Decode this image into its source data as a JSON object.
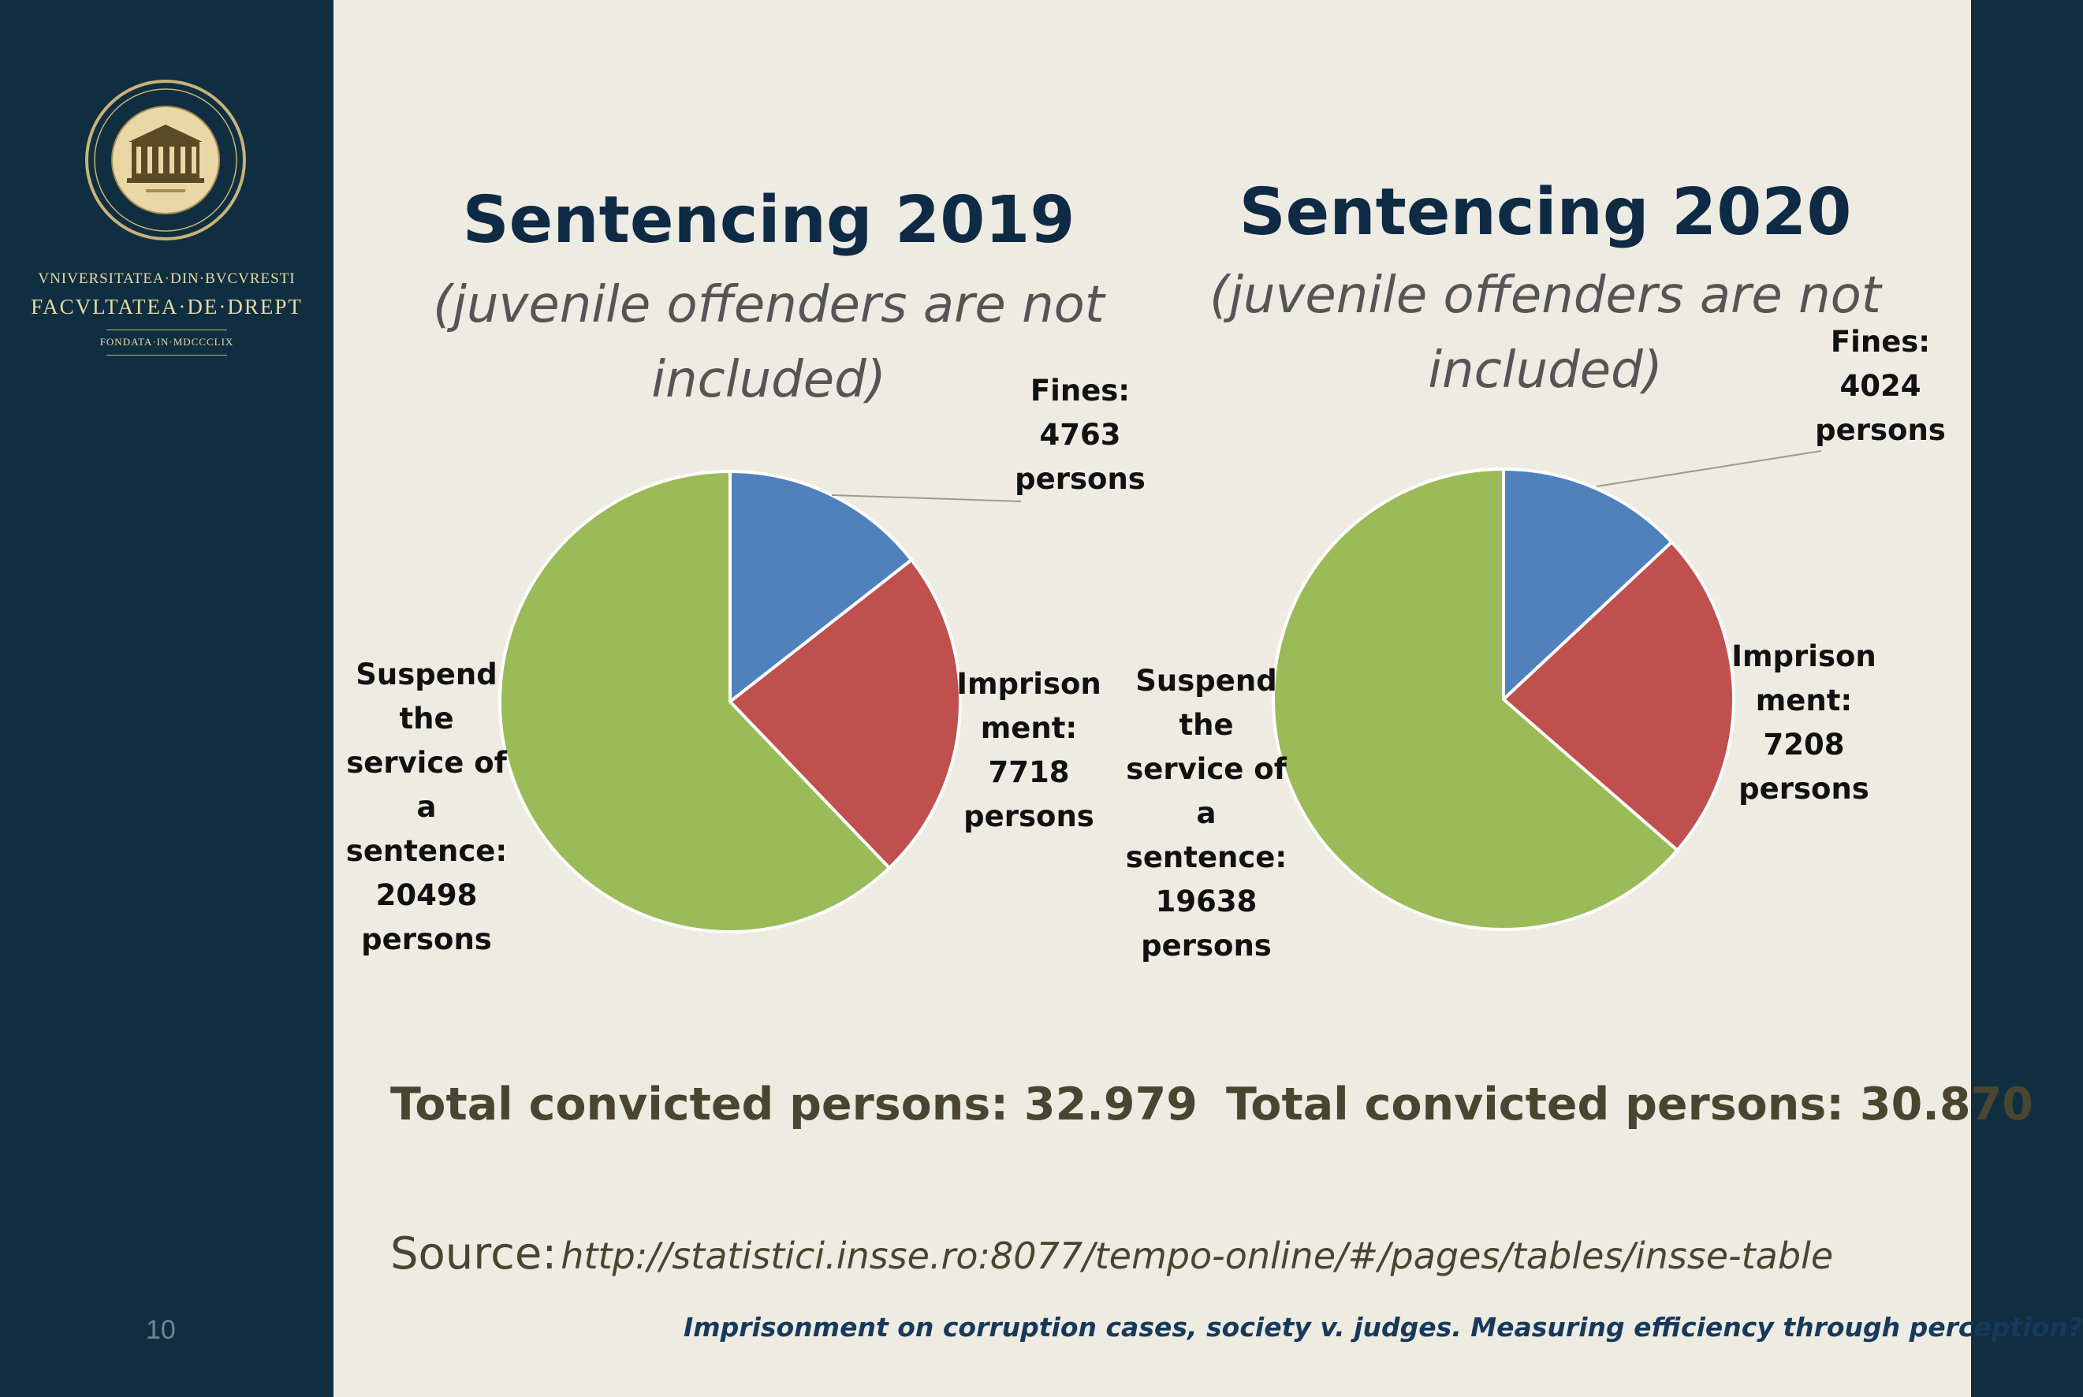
{
  "sidebar": {
    "university_line1": "VNIVERSITATEA·DIN·BVCVRESTI",
    "university_line2": "FACVLTATEA·DE·DREPT",
    "university_line3": "FONDATA·IN·MDCCCLIX",
    "page_number": "10"
  },
  "charts": [
    {
      "title": "Sentencing 2019",
      "subtitle": "(juvenile offenders are not included)",
      "total": "Total convicted persons: 32.979"
    },
    {
      "title": "Sentencing 2020",
      "subtitle": "(juvenile offenders are not included)",
      "total": "Total convicted persons: 30.870"
    }
  ],
  "chart_data": [
    {
      "type": "pie",
      "title": "Sentencing 2019",
      "subtitle": "(juvenile offenders are not included)",
      "categories": [
        "Fines",
        "Imprisonment",
        "Suspend the service of a sentence"
      ],
      "values": [
        4763,
        7718,
        20498
      ],
      "labels": [
        [
          "Fines:",
          "4763",
          "persons"
        ],
        [
          "Imprison",
          "ment:",
          "7718",
          "persons"
        ],
        [
          "Suspend",
          "the",
          "service of",
          "a",
          "sentence:",
          "20498",
          "persons"
        ]
      ],
      "colors": [
        "#4f81bd",
        "#c0504d",
        "#9bbb59"
      ]
    },
    {
      "type": "pie",
      "title": "Sentencing 2020",
      "subtitle": "(juvenile offenders are not included)",
      "categories": [
        "Fines",
        "Imprisonment",
        "Suspend the service of a sentence"
      ],
      "values": [
        4024,
        7208,
        19638
      ],
      "labels": [
        [
          "Fines:",
          "4024",
          "persons"
        ],
        [
          "Imprison",
          "ment:",
          "7208",
          "persons"
        ],
        [
          "Suspend",
          "the",
          "service of",
          "a",
          "sentence:",
          "19638",
          "persons"
        ]
      ],
      "colors": [
        "#4f81bd",
        "#c0504d",
        "#9bbb59"
      ]
    }
  ],
  "source": {
    "label": "Source:",
    "url": "http://statistici.insse.ro:8077/tempo-online/#/pages/tables/insse-table"
  },
  "footer": "Imprisonment on corruption cases, society v. judges. Measuring efficiency through perception?"
}
